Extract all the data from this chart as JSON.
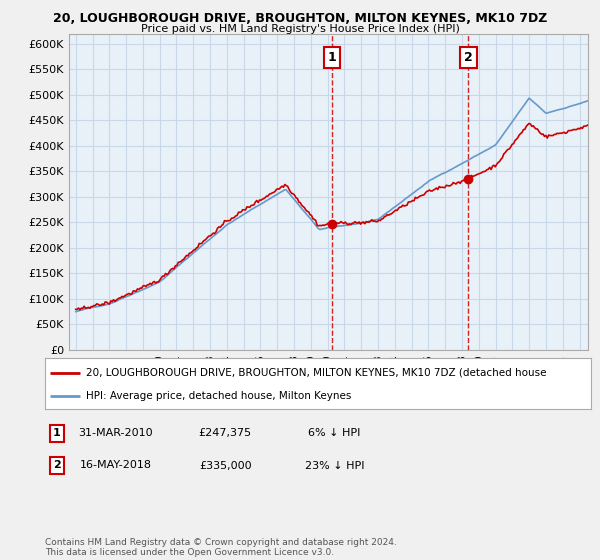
{
  "title": "20, LOUGHBOROUGH DRIVE, BROUGHTON, MILTON KEYNES, MK10 7DZ",
  "subtitle": "Price paid vs. HM Land Registry's House Price Index (HPI)",
  "ylabel_ticks": [
    "£0",
    "£50K",
    "£100K",
    "£150K",
    "£200K",
    "£250K",
    "£300K",
    "£350K",
    "£400K",
    "£450K",
    "£500K",
    "£550K",
    "£600K"
  ],
  "ylim": [
    0,
    620000
  ],
  "yticks": [
    0,
    50000,
    100000,
    150000,
    200000,
    250000,
    300000,
    350000,
    400000,
    450000,
    500000,
    550000,
    600000
  ],
  "hpi_color": "#6699cc",
  "address_color": "#cc0000",
  "marker1_date": 2010.25,
  "marker1_price": 247375,
  "marker2_date": 2018.38,
  "marker2_price": 335000,
  "legend_address": "20, LOUGHBOROUGH DRIVE, BROUGHTON, MILTON KEYNES, MK10 7DZ (detached house",
  "legend_hpi": "HPI: Average price, detached house, Milton Keynes",
  "footer": "Contains HM Land Registry data © Crown copyright and database right 2024.\nThis data is licensed under the Open Government Licence v3.0.",
  "bg_color": "#e8f0f8",
  "grid_color": "#c8d8e8",
  "start_year": 1995,
  "end_year": 2026
}
